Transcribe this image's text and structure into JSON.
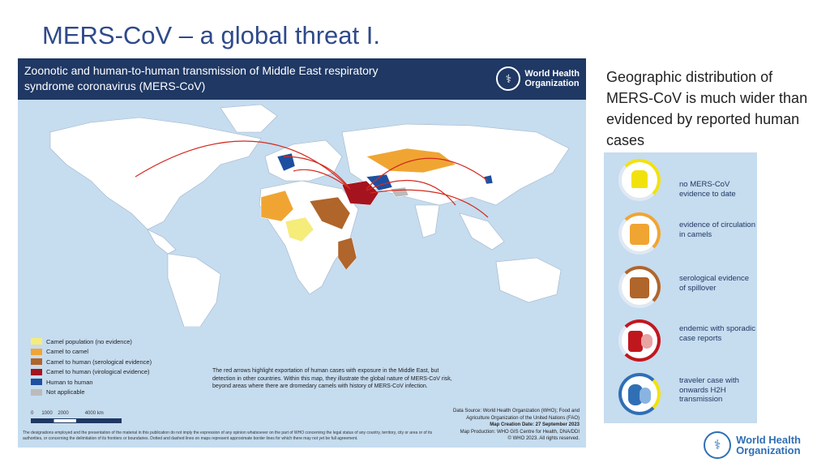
{
  "slide": {
    "title": "MERS-CoV – a global threat I."
  },
  "map_panel": {
    "title": "Zoonotic and human-to-human transmission of Middle East respiratory syndrome coronavirus (MERS-CoV)",
    "logo_text_line1": "World Health",
    "logo_text_line2": "Organization",
    "legend": [
      {
        "label": "Camel population (no evidence)",
        "color": "#f5ec7a"
      },
      {
        "label": "Camel to camel",
        "color": "#f0a533"
      },
      {
        "label": "Camel to human (serological evidence)",
        "color": "#b0652a"
      },
      {
        "label": "Camel to human (virological evidence)",
        "color": "#a5141e"
      },
      {
        "label": "Human to human",
        "color": "#1d4fa0"
      },
      {
        "label": "Not applicable",
        "color": "#bbbbbb"
      }
    ],
    "scale_labels": "0      1000    2000            4000 km",
    "note": "The red arrows highlight exportation of human cases with exposure in the Middle East, but detection in other countries. Within this map, they illustrate the global nature of MERS-CoV risk, beyond areas where there are dromedary camels with history of MERS-CoV infection.",
    "source_line1": "Data Source: World Health Organization (WHO); Food and",
    "source_line2": "Agriculture Organization of the United Nations (FAO)",
    "source_line3": "Map Creation Date: 27 September 2023",
    "source_line4": "Map Production: WHO GIS Centre for Health, DNA/DDI",
    "source_line5": "© WHO 2023. All rights reserved.",
    "disclaimer": "The designations employed and the presentation of the material in this publication do not imply the expression of any opinion whatsoever on the part of WHO concerning the legal status of any country, territory, city or area or of its authorities, or concerning the delimitation of its frontiers or boundaries. Dotted and dashed lines on maps represent approximate border lines for which there may not yet be full agreement."
  },
  "side_text": "Geographic distribution of MERS-CoV is much wider than evidenced by reported human cases",
  "icon_panel": [
    {
      "label": "no MERS-CoV evidence to date",
      "color": "#f2e20c"
    },
    {
      "label": "evidence of circulation in camels",
      "color": "#f0a533"
    },
    {
      "label": "serological evidence of spillover",
      "color": "#b0652a"
    },
    {
      "label": "endemic with sporadic case reports",
      "color": "#c0171e"
    },
    {
      "label": "traveler case with onwards H2H transmission",
      "color": "#2f6fb5"
    }
  ],
  "footer_logo": {
    "line1": "World Health",
    "line2": "Organization"
  }
}
